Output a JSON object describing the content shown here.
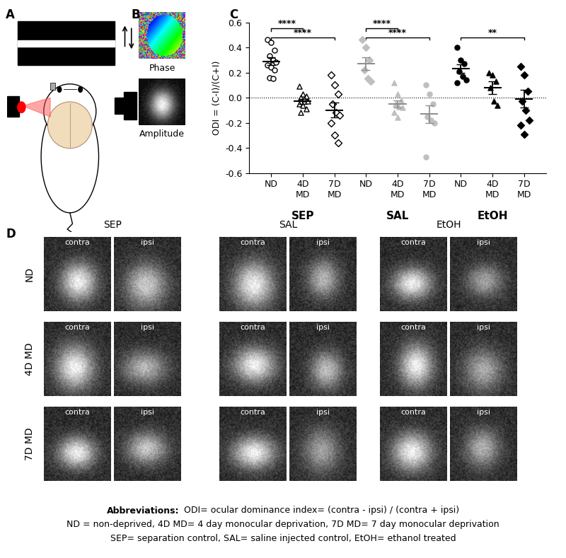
{
  "chart_data": {
    "type": "scatter",
    "ylabel": "ODI = (C-I)/(C+I)",
    "ylim": [
      -0.6,
      0.6
    ],
    "yticks": [
      -0.6,
      -0.4,
      -0.2,
      0.0,
      0.2,
      0.4,
      0.6
    ],
    "categories": [
      "ND",
      "4D MD",
      "7D MD",
      "ND",
      "4D MD",
      "7D MD",
      "ND",
      "4D MD",
      "7D MD"
    ],
    "group_labels": [
      "SEP",
      "SAL",
      "EtOH"
    ],
    "values": [
      [
        0.46,
        0.44,
        0.38,
        0.33,
        0.3,
        0.28,
        0.26,
        0.24,
        0.22,
        0.16,
        0.15
      ],
      [
        0.09,
        0.03,
        0.01,
        0.0,
        -0.01,
        -0.03,
        -0.05,
        -0.06,
        -0.09,
        -0.12
      ],
      [
        0.18,
        0.1,
        0.03,
        -0.05,
        -0.12,
        -0.14,
        -0.2,
        -0.3,
        -0.36
      ],
      [
        0.46,
        0.4,
        0.3,
        0.22,
        0.15,
        0.13
      ],
      [
        0.12,
        0.03,
        -0.02,
        -0.05,
        -0.07,
        -0.08,
        -0.12,
        -0.16
      ],
      [
        0.1,
        0.03,
        -0.05,
        -0.15,
        -0.18,
        -0.2,
        -0.47
      ],
      [
        0.4,
        0.3,
        0.27,
        0.21,
        0.17,
        0.14,
        0.12
      ],
      [
        0.2,
        0.18,
        0.13,
        0.08,
        -0.03,
        -0.06
      ],
      [
        0.25,
        0.18,
        0.05,
        -0.03,
        -0.1,
        -0.18,
        -0.22,
        -0.29
      ]
    ],
    "mean": [
      0.29,
      -0.03,
      -0.1,
      0.27,
      -0.05,
      -0.13,
      0.23,
      0.08,
      -0.01
    ],
    "sem": [
      0.03,
      0.02,
      0.06,
      0.05,
      0.03,
      0.07,
      0.035,
      0.05,
      0.07
    ],
    "colors": [
      "#ffffff",
      "#ffffff",
      "#ffffff",
      "#bfbfbf",
      "#bfbfbf",
      "#bfbfbf",
      "#000000",
      "#000000",
      "#000000"
    ],
    "markers": [
      "circle",
      "triangle",
      "diamond",
      "diamond",
      "triangle",
      "circle",
      "circle",
      "triangle",
      "diamond"
    ],
    "significance": [
      {
        "from": 0,
        "to": 1,
        "y": 0.55,
        "label": "****"
      },
      {
        "from": 0,
        "to": 2,
        "y": 0.48,
        "label": "****"
      },
      {
        "from": 3,
        "to": 4,
        "y": 0.55,
        "label": "****"
      },
      {
        "from": 3,
        "to": 5,
        "y": 0.48,
        "label": "****"
      },
      {
        "from": 6,
        "to": 8,
        "y": 0.48,
        "label": "**"
      }
    ]
  },
  "panel_labels": [
    "A",
    "B",
    "C",
    "D"
  ],
  "panel_b": {
    "labels": [
      "Phase",
      "Amplitude"
    ]
  },
  "panel_d": {
    "columns": [
      "SEP",
      "SAL",
      "EtOH"
    ],
    "rows": [
      "ND",
      "4D MD",
      "7D MD"
    ],
    "image_labels": [
      "contra",
      "ipsi"
    ]
  },
  "abbreviations": {
    "heading": "Abbreviations:",
    "lines": [
      "ODI= ocular dominance index= (contra - ipsi) / (contra + ipsi)",
      "ND = non-deprived, 4D MD= 4 day monocular deprivation, 7D MD= 7 day monocular deprivation",
      "SEP= separation control, SAL= saline injected control, EtOH= ethanol treated"
    ]
  }
}
